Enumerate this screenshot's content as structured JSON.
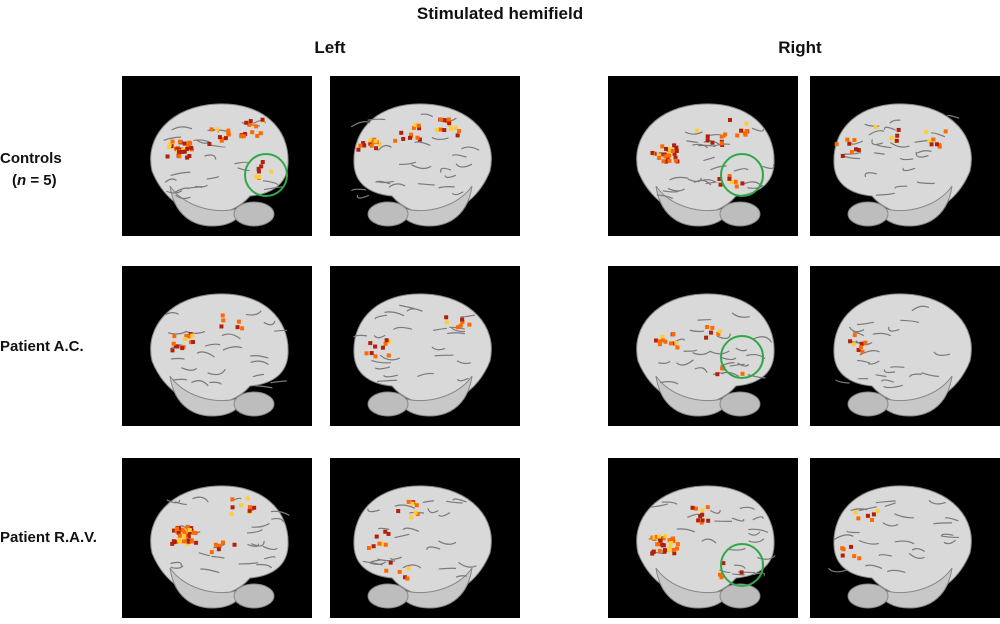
{
  "figure": {
    "title": "Stimulated hemifield",
    "columns": [
      {
        "label": "Left"
      },
      {
        "label": "Right"
      }
    ],
    "rows": [
      {
        "label_line1": "Controls",
        "label_line2_prefix": "(",
        "label_line2_n": "n",
        "label_line2_suffix": " = 5)"
      },
      {
        "label_line1": "Patient A.C.",
        "label_line2_prefix": "",
        "label_line2_n": "",
        "label_line2_suffix": ""
      },
      {
        "label_line1": "Patient R.A.V.",
        "label_line2_prefix": "",
        "label_line2_n": "",
        "label_line2_suffix": ""
      }
    ]
  },
  "colors": {
    "panel_bg": "#000000",
    "brain": "#d9d9d9",
    "activation_hot": "#ffcc33",
    "activation_mid": "#ff6a00",
    "activation_low": "#b0200a",
    "circle": "#2fa84a"
  },
  "views": [
    "lateral-left",
    "lateral-right",
    "lateral-left",
    "lateral-right"
  ],
  "highlight_circles": [
    {
      "row": 0,
      "column": 0,
      "view": 0
    },
    {
      "row": 0,
      "column": 1,
      "view": 0
    },
    {
      "row": 1,
      "column": 1,
      "view": 0
    },
    {
      "row": 2,
      "column": 1,
      "view": 0
    }
  ]
}
